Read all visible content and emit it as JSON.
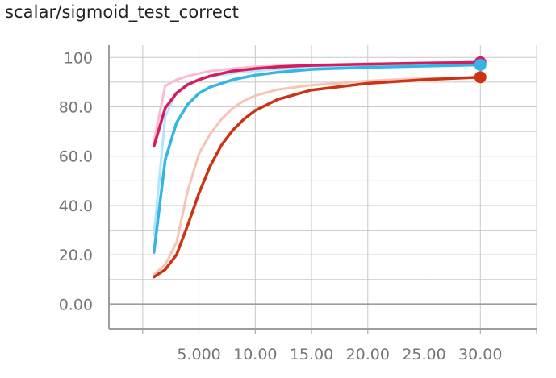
{
  "chart_data": {
    "type": "line",
    "title": "scalar/sigmoid_test_correct",
    "xlabel": "",
    "ylabel": "",
    "xlim": [
      -3,
      35
    ],
    "ylim": [
      -10,
      105
    ],
    "x_ticks": [
      5,
      10,
      15,
      20,
      25,
      30
    ],
    "x_tick_labels": [
      "5.000",
      "10.00",
      "15.00",
      "20.00",
      "25.00",
      "30.00"
    ],
    "y_ticks": [
      0,
      20,
      40,
      60,
      80,
      100
    ],
    "y_tick_labels": [
      "0.00",
      "20.0",
      "40.0",
      "60.0",
      "80.0",
      "100"
    ],
    "grid": true,
    "series": [
      {
        "color": "#d81b60",
        "raw_color": "#f8bbd0",
        "x": [
          1,
          2,
          3,
          4,
          5,
          6,
          8,
          10,
          12,
          15,
          20,
          25,
          30
        ],
        "values": [
          64,
          79.5,
          85.5,
          89,
          91,
          92.5,
          94.5,
          95.5,
          96.2,
          96.8,
          97.3,
          97.7,
          98
        ],
        "raw_values": [
          66,
          88.5,
          91,
          92.5,
          93.5,
          94.5,
          95.5,
          96.2,
          96.6,
          97,
          97.5,
          97.8,
          98
        ]
      },
      {
        "color": "#33b5e5",
        "raw_color": "#b3e5fc",
        "x": [
          1,
          2,
          3,
          4,
          5,
          6,
          8,
          10,
          12,
          15,
          20,
          25,
          30
        ],
        "values": [
          21,
          58.5,
          73.5,
          81,
          85.5,
          88,
          91,
          92.8,
          94,
          95.2,
          96,
          96.5,
          97
        ],
        "raw_values": [
          28,
          76,
          86,
          89.5,
          91,
          92.3,
          93.7,
          94.6,
          95.3,
          95.8,
          96.4,
          96.8,
          97
        ]
      },
      {
        "color": "#cc3311",
        "raw_color": "#f5c4b8",
        "x": [
          1,
          2,
          3,
          4,
          5,
          6,
          7,
          8,
          9,
          10,
          12,
          15,
          20,
          25,
          30
        ],
        "values": [
          11,
          14,
          20,
          32,
          45,
          56,
          64.5,
          70.5,
          75,
          78.5,
          83,
          86.8,
          89.5,
          91,
          92
        ],
        "raw_values": [
          12,
          16,
          25,
          46,
          61,
          69,
          75,
          79.5,
          82.5,
          84.5,
          87,
          88.8,
          90.5,
          91.5,
          92
        ]
      }
    ]
  }
}
